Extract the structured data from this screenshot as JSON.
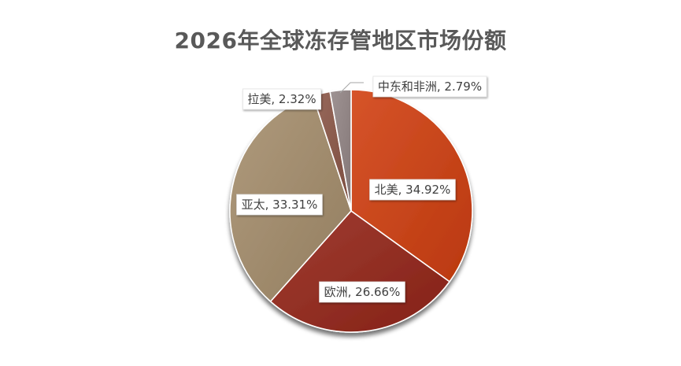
{
  "chart_data": {
    "type": "pie",
    "title": "2026年全球冻存管地区市场份额",
    "slices": [
      {
        "label": "北美",
        "value": 34.92,
        "display": "北美, 34.92%",
        "color": "#C8461C"
      },
      {
        "label": "欧洲",
        "value": 26.66,
        "display": "欧洲, 26.66%",
        "color": "#922F24"
      },
      {
        "label": "亚太",
        "value": 33.31,
        "display": "亚太, 33.31%",
        "color": "#A18C6E"
      },
      {
        "label": "拉美",
        "value": 2.32,
        "display": "拉美, 2.32%",
        "color": "#8A5B4D"
      },
      {
        "label": "中东和非洲",
        "value": 2.79,
        "display": "中东和非洲, 2.79%",
        "color": "#918585"
      }
    ],
    "unit": "%",
    "legend": "none"
  }
}
